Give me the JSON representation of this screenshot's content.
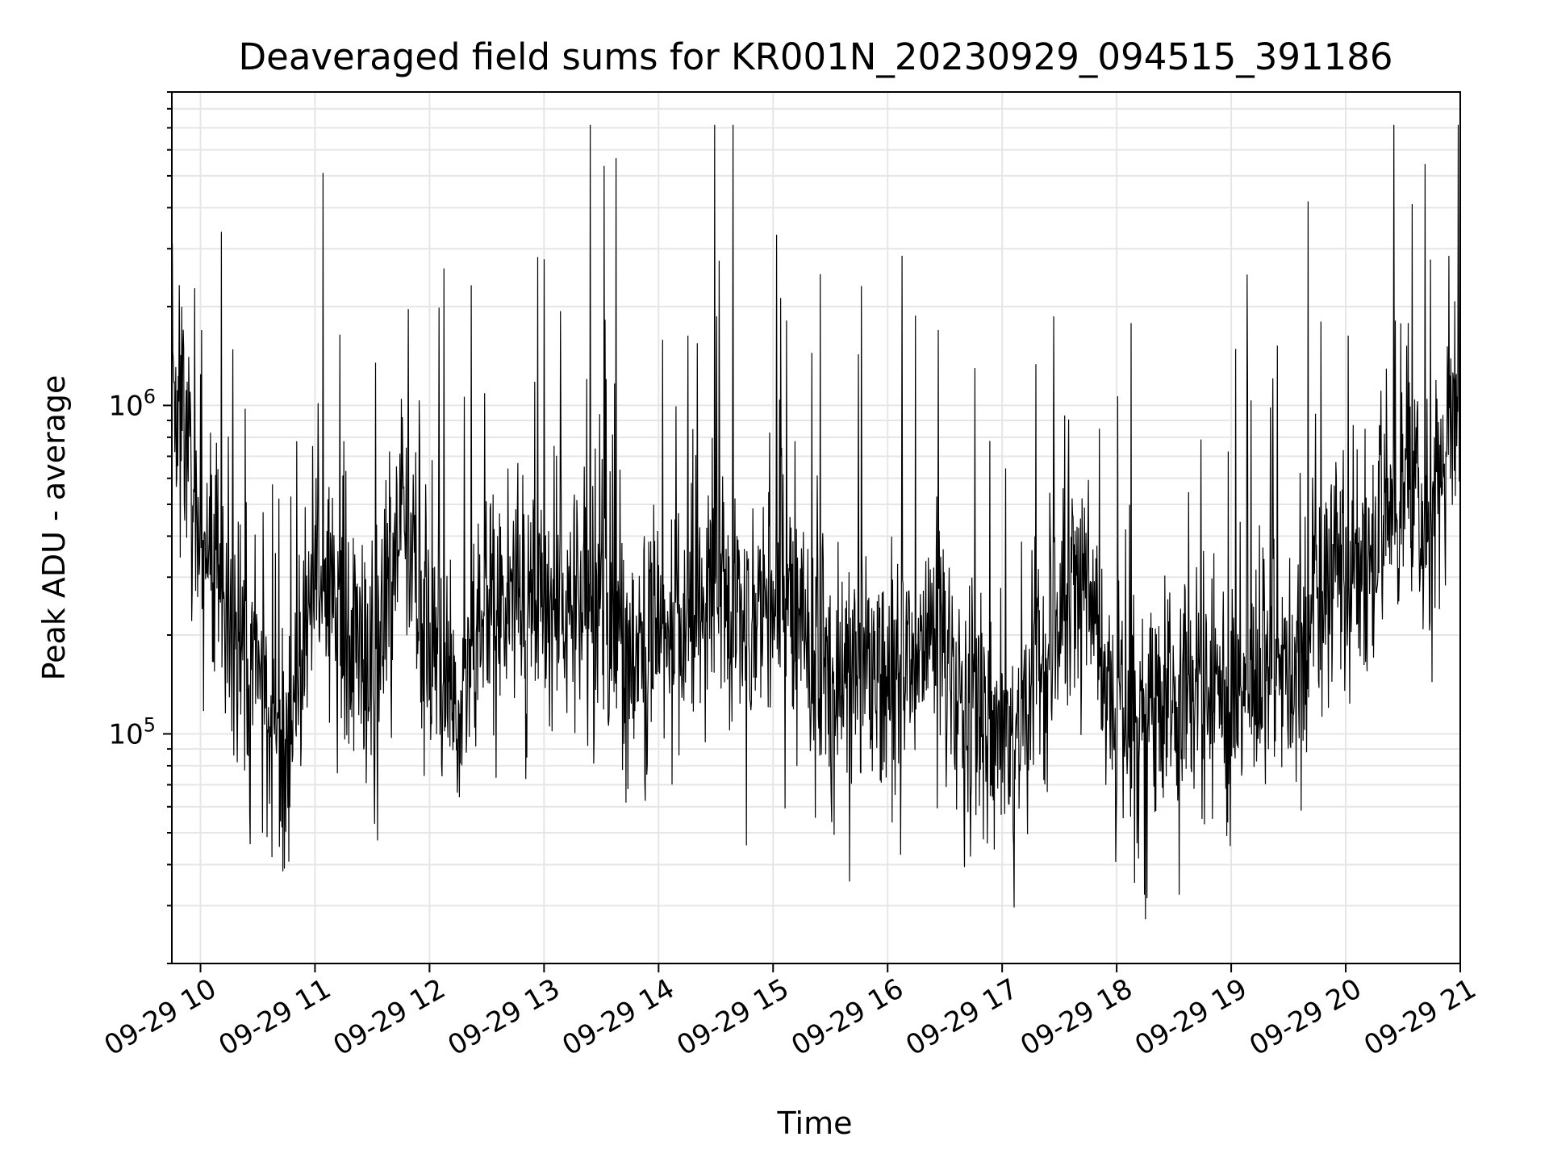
{
  "chart_data": {
    "type": "line",
    "title": "Deaveraged field sums for KR001N_20230929_094515_391186",
    "xlabel": "Time",
    "ylabel": "Peak ADU - average",
    "yscale": "log",
    "ylim": [
      20000,
      9000000
    ],
    "xlim": [
      "2023-09-29 09:45",
      "2023-09-29 21:00"
    ],
    "x_tick_labels": [
      "09-29 10",
      "09-29 11",
      "09-29 12",
      "09-29 13",
      "09-29 14",
      "09-29 15",
      "09-29 16",
      "09-29 17",
      "09-29 18",
      "09-29 19",
      "09-29 20",
      "09-29 21"
    ],
    "y_tick_labels": [
      {
        "base": "10",
        "exp": "5",
        "value": 100000
      },
      {
        "base": "10",
        "exp": "6",
        "value": 1000000
      }
    ],
    "grid": true,
    "line_color": "#000000",
    "series": [
      {
        "x": [
          "09:45",
          "10:00",
          "10:15",
          "10:30",
          "10:45",
          "11:00",
          "11:15",
          "11:30",
          "11:45",
          "12:00",
          "12:15",
          "12:30",
          "12:45",
          "13:00",
          "13:15",
          "13:30",
          "13:45",
          "14:00",
          "14:15",
          "14:30",
          "14:45",
          "15:00",
          "15:15",
          "15:30",
          "15:45",
          "16:00",
          "16:15",
          "16:30",
          "16:45",
          "17:00",
          "17:15",
          "17:30",
          "17:45",
          "18:00",
          "18:15",
          "18:30",
          "18:45",
          "19:00",
          "19:15",
          "19:30",
          "19:45",
          "20:00",
          "20:15",
          "20:30",
          "20:45",
          "21:00"
        ],
        "y": [
          1400000,
          400000,
          250000,
          130000,
          80000,
          350000,
          200000,
          150000,
          500000,
          180000,
          130000,
          250000,
          280000,
          220000,
          250000,
          260000,
          170000,
          180000,
          230000,
          300000,
          220000,
          250000,
          220000,
          150000,
          160000,
          140000,
          180000,
          200000,
          110000,
          100000,
          120000,
          250000,
          300000,
          100000,
          110000,
          130000,
          150000,
          130000,
          160000,
          150000,
          250000,
          300000,
          350000,
          600000,
          400000,
          1300000
        ]
      }
    ]
  }
}
